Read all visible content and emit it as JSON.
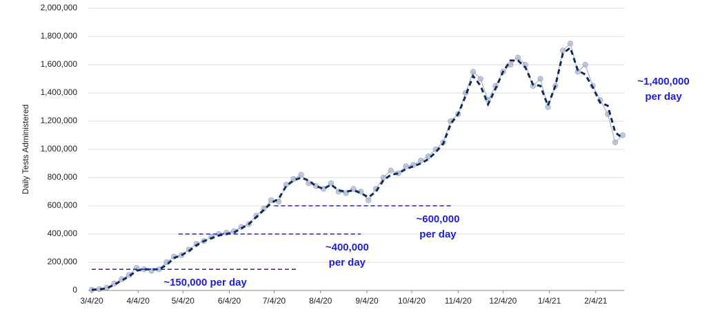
{
  "chart_data": {
    "type": "line",
    "y_label": "Daily Tests Administered",
    "x": [
      "3/4/20",
      "3/9/20",
      "3/14/20",
      "3/19/20",
      "3/24/20",
      "3/29/20",
      "4/3/20",
      "4/8/20",
      "4/13/20",
      "4/18/20",
      "4/23/20",
      "4/28/20",
      "5/3/20",
      "5/8/20",
      "5/13/20",
      "5/18/20",
      "5/23/20",
      "5/28/20",
      "6/2/20",
      "6/7/20",
      "6/12/20",
      "6/17/20",
      "6/22/20",
      "6/27/20",
      "7/2/20",
      "7/7/20",
      "7/12/20",
      "7/17/20",
      "7/22/20",
      "7/27/20",
      "8/1/20",
      "8/6/20",
      "8/11/20",
      "8/16/20",
      "8/21/20",
      "8/26/20",
      "8/31/20",
      "9/5/20",
      "9/10/20",
      "9/15/20",
      "9/20/20",
      "9/25/20",
      "9/30/20",
      "10/5/20",
      "10/10/20",
      "10/15/20",
      "10/20/20",
      "10/25/20",
      "10/30/20",
      "11/4/20",
      "11/9/20",
      "11/14/20",
      "11/19/20",
      "11/24/20",
      "11/29/20",
      "12/4/20",
      "12/9/20",
      "12/14/20",
      "12/19/20",
      "12/24/20",
      "12/29/20",
      "1/3/21",
      "1/8/21",
      "1/13/21",
      "1/18/21",
      "1/23/21",
      "1/28/21",
      "2/2/21",
      "2/7/21",
      "2/12/21",
      "2/17/21",
      "2/22/21"
    ],
    "series": [
      {
        "color": "#a9b4cc",
        "style": "markers",
        "values": [
          5000,
          10000,
          20000,
          50000,
          80000,
          110000,
          160000,
          150000,
          140000,
          150000,
          200000,
          240000,
          250000,
          290000,
          330000,
          350000,
          380000,
          400000,
          410000,
          420000,
          450000,
          470000,
          530000,
          580000,
          640000,
          630000,
          750000,
          790000,
          820000,
          760000,
          740000,
          720000,
          760000,
          700000,
          690000,
          720000,
          700000,
          640000,
          720000,
          800000,
          850000,
          830000,
          880000,
          890000,
          920000,
          950000,
          1000000,
          1050000,
          1200000,
          1250000,
          1400000,
          1550000,
          1500000,
          1350000,
          1450000,
          1550000,
          1600000,
          1650000,
          1600000,
          1450000,
          1500000,
          1300000,
          1450000,
          1700000,
          1750000,
          1550000,
          1600000,
          1450000,
          1350000,
          1250000,
          1050000,
          1100000
        ]
      },
      {
        "color": "#0d2b5c",
        "style": "dashed",
        "values": [
          5000,
          8000,
          15000,
          40000,
          70000,
          100000,
          140000,
          150000,
          150000,
          150000,
          180000,
          230000,
          250000,
          280000,
          320000,
          350000,
          370000,
          390000,
          400000,
          410000,
          440000,
          470000,
          520000,
          570000,
          620000,
          650000,
          740000,
          780000,
          800000,
          780000,
          740000,
          720000,
          750000,
          710000,
          700000,
          710000,
          690000,
          660000,
          700000,
          780000,
          820000,
          830000,
          860000,
          880000,
          900000,
          930000,
          980000,
          1040000,
          1180000,
          1250000,
          1380000,
          1520000,
          1450000,
          1320000,
          1430000,
          1550000,
          1630000,
          1630000,
          1580000,
          1460000,
          1450000,
          1310000,
          1450000,
          1680000,
          1720000,
          1560000,
          1530000,
          1440000,
          1330000,
          1310000,
          1120000,
          1080000
        ]
      }
    ],
    "xlim": [
      "3/4/20",
      "2/23/21"
    ],
    "xticks": [
      "3/4/20",
      "4/4/20",
      "5/4/20",
      "6/4/20",
      "7/4/20",
      "8/4/20",
      "9/4/20",
      "10/4/20",
      "11/4/20",
      "12/4/20",
      "1/4/21",
      "2/4/21"
    ],
    "ylim": [
      0,
      2000000
    ],
    "yticks": [
      0,
      {
        "value": 200000,
        "label": "200,000"
      },
      {
        "value": 400000,
        "label": "400,000"
      },
      {
        "value": 600000,
        "label": "600,000"
      },
      {
        "value": 800000,
        "label": "800,000"
      },
      {
        "value": 1000000,
        "label": "1,000,000"
      },
      {
        "value": 1200000,
        "label": "1,200,000"
      },
      {
        "value": 1400000,
        "label": "1,400,000"
      },
      {
        "value": 1600000,
        "label": "1,600,000"
      },
      {
        "value": 1800000,
        "label": "1,800,000"
      },
      {
        "value": 2000000,
        "label": "2,000,000"
      }
    ],
    "grid": true,
    "annotations": [
      {
        "text": [
          "~150,000 per day"
        ],
        "y": 150000,
        "x": [
          "3/4/20",
          "7/20/20"
        ]
      },
      {
        "text": [
          "~400,000",
          "per day"
        ],
        "y": 400000,
        "x": [
          "5/1/20",
          "8/31/20"
        ]
      },
      {
        "text": [
          "~600,000",
          "per day"
        ],
        "y": 600000,
        "x": [
          "7/4/20",
          "10/31/20"
        ]
      },
      {
        "text": [
          "~1,400,000",
          "per day"
        ]
      }
    ]
  }
}
